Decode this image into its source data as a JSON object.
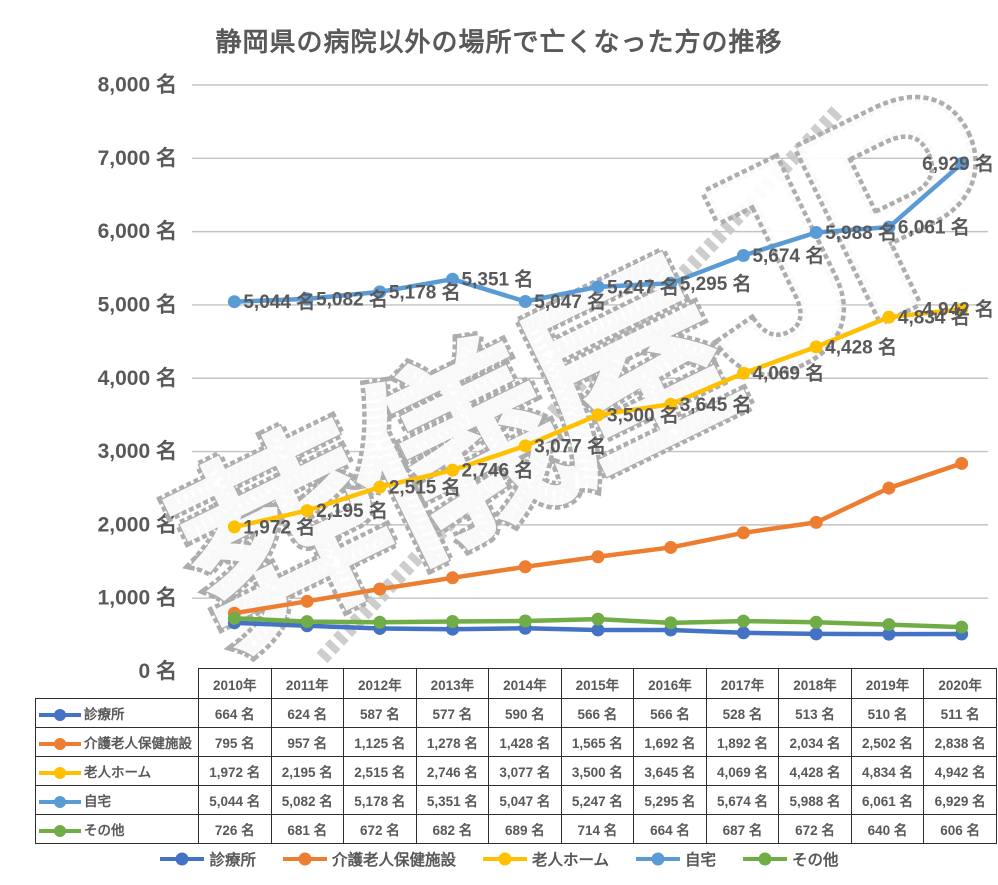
{
  "title": "静岡県の病院以外の場所で亡くなった方の推移",
  "watermark": {
    "text": "葬儀屋JP"
  },
  "colors": {
    "text": "#595959",
    "grid": "#C3C3C3",
    "table_border": "#2d2d2d",
    "watermark_outline": "#ADADAD",
    "watermark_fill": "#FFFFFF",
    "band": "#C8C8C8"
  },
  "chart_data": {
    "type": "line",
    "title": "静岡県の病院以外の場所で亡くなった方の推移",
    "categories": [
      "2010年",
      "2011年",
      "2012年",
      "2013年",
      "2014年",
      "2015年",
      "2016年",
      "2017年",
      "2018年",
      "2019年",
      "2020年"
    ],
    "value_suffix": " 名",
    "y_axis": {
      "min": 0,
      "max": 8000,
      "step": 1000,
      "tick_suffix": " 名",
      "gridlines": true
    },
    "legend_position": "bottom",
    "data_table_shown": true,
    "series": [
      {
        "name": "診療所",
        "color": "#4472C4",
        "marker": "circle",
        "data_labels": false,
        "values": [
          664,
          624,
          587,
          577,
          590,
          566,
          566,
          528,
          513,
          510,
          511
        ]
      },
      {
        "name": "介護老人保健施設",
        "color": "#ED7D31",
        "marker": "circle",
        "data_labels": false,
        "values": [
          795,
          957,
          1125,
          1278,
          1428,
          1565,
          1692,
          1892,
          2034,
          2502,
          2838
        ]
      },
      {
        "name": "老人ホーム",
        "color": "#FFC000",
        "marker": "circle",
        "data_labels": true,
        "values": [
          1972,
          2195,
          2515,
          2746,
          3077,
          3500,
          3645,
          4069,
          4428,
          4834,
          4942
        ]
      },
      {
        "name": "自宅",
        "color": "#5B9BD5",
        "marker": "circle",
        "data_labels": true,
        "values": [
          5044,
          5082,
          5178,
          5351,
          5047,
          5247,
          5295,
          5674,
          5988,
          6061,
          6929
        ]
      },
      {
        "name": "その他",
        "color": "#70AD47",
        "marker": "circle",
        "data_labels": false,
        "values": [
          726,
          681,
          672,
          682,
          689,
          714,
          664,
          687,
          672,
          640,
          606
        ]
      }
    ]
  }
}
